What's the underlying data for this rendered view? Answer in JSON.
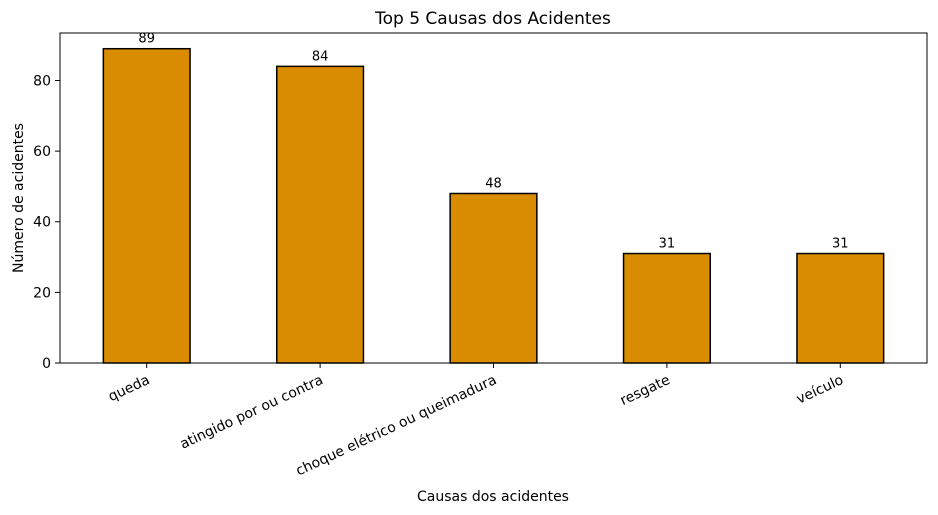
{
  "chart_data": {
    "type": "bar",
    "title": "Top 5 Causas dos Acidentes",
    "xlabel": "Causas dos acidentes",
    "ylabel": "Número de acidentes",
    "categories": [
      "queda",
      "atingido por ou contra",
      "choque elétrico ou queimadura",
      "resgate",
      "veículo"
    ],
    "values": [
      89,
      84,
      48,
      31,
      31
    ],
    "ylim": [
      0,
      93.45
    ],
    "yticks": [
      0,
      20,
      40,
      60,
      80
    ],
    "grid": false,
    "bar_color": "#d98c00",
    "bar_edge_color": "#000000"
  }
}
